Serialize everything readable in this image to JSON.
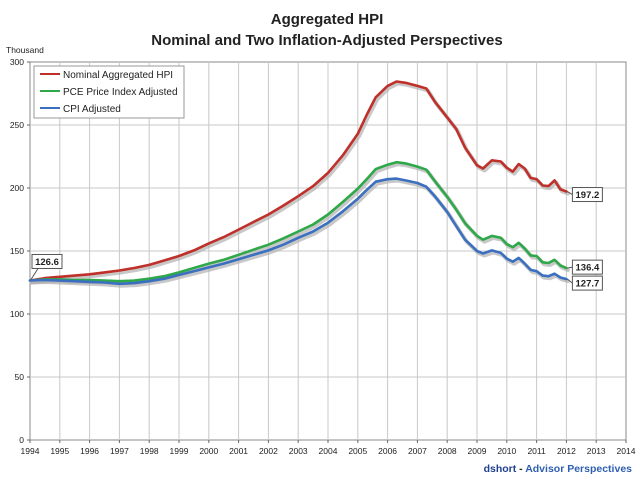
{
  "chart_data": {
    "type": "line",
    "title": "Aggregated HPI",
    "subtitle": "Nominal and Two Inflation-Adjusted Perspectives",
    "y_unit": "Thousand",
    "xlim": [
      1994,
      2014
    ],
    "ylim": [
      0,
      300
    ],
    "x_ticks": [
      "1994",
      "1995",
      "1996",
      "1997",
      "1998",
      "1999",
      "2000",
      "2001",
      "2002",
      "2003",
      "2004",
      "2005",
      "2006",
      "2007",
      "2008",
      "2009",
      "2010",
      "2011",
      "2012",
      "2013",
      "2014"
    ],
    "y_ticks": [
      "0",
      "50",
      "100",
      "150",
      "200",
      "250",
      "300"
    ],
    "grid": true,
    "legend_position": "top-left",
    "credit": {
      "name": "dshort",
      "separator": " - ",
      "org": "Advisor Perspectives",
      "name_color": "#1f3f8f",
      "org_color": "#2e5fb0"
    },
    "callouts": [
      {
        "label": "126.6",
        "x": 1994.0,
        "y": 126.6,
        "anchor": "start"
      },
      {
        "label": "197.2",
        "x": 2012.0,
        "y": 197.2,
        "anchor": "end"
      },
      {
        "label": "136.4",
        "x": 2012.0,
        "y": 136.4,
        "anchor": "end"
      },
      {
        "label": "127.7",
        "x": 2012.0,
        "y": 127.7,
        "anchor": "end"
      }
    ],
    "series": [
      {
        "name": "Nominal Aggregated HPI",
        "color": "#c0302a",
        "x": [
          1994.0,
          1994.5,
          1995.0,
          1995.5,
          1996.0,
          1996.5,
          1997.0,
          1997.5,
          1998.0,
          1998.5,
          1999.0,
          1999.5,
          2000.0,
          2000.5,
          2001.0,
          2001.5,
          2002.0,
          2002.5,
          2003.0,
          2003.5,
          2004.0,
          2004.5,
          2005.0,
          2005.3,
          2005.6,
          2006.0,
          2006.3,
          2006.6,
          2007.0,
          2007.3,
          2007.6,
          2008.0,
          2008.3,
          2008.6,
          2009.0,
          2009.2,
          2009.5,
          2009.8,
          2010.0,
          2010.2,
          2010.4,
          2010.6,
          2010.8,
          2011.0,
          2011.2,
          2011.4,
          2011.6,
          2011.8,
          2012.0
        ],
        "y": [
          126.6,
          128.5,
          129.5,
          130.5,
          131.5,
          133.0,
          134.5,
          136.5,
          139.0,
          142.5,
          146.0,
          150.5,
          156.0,
          161.0,
          167.0,
          173.0,
          179.0,
          186.0,
          193.5,
          201.5,
          212.0,
          226.0,
          243.0,
          258.0,
          272.0,
          281.0,
          284.5,
          283.5,
          281.0,
          279.0,
          268.0,
          256.0,
          247.0,
          232.0,
          218.0,
          215.5,
          222.0,
          221.0,
          216.0,
          213.0,
          219.0,
          215.5,
          208.0,
          207.0,
          202.0,
          201.5,
          206.0,
          199.0,
          197.2
        ]
      },
      {
        "name": "PCE Price Index Adjusted",
        "color": "#2fa84a",
        "x": [
          1994.0,
          1994.5,
          1995.0,
          1995.5,
          1996.0,
          1996.5,
          1997.0,
          1997.5,
          1998.0,
          1998.5,
          1999.0,
          1999.5,
          2000.0,
          2000.5,
          2001.0,
          2001.5,
          2002.0,
          2002.5,
          2003.0,
          2003.5,
          2004.0,
          2004.5,
          2005.0,
          2005.3,
          2005.6,
          2006.0,
          2006.3,
          2006.6,
          2007.0,
          2007.3,
          2007.6,
          2008.0,
          2008.3,
          2008.6,
          2009.0,
          2009.2,
          2009.5,
          2009.8,
          2010.0,
          2010.2,
          2010.4,
          2010.6,
          2010.8,
          2011.0,
          2011.2,
          2011.4,
          2011.6,
          2011.8,
          2012.0
        ],
        "y": [
          126.6,
          127.5,
          127.5,
          127.0,
          127.0,
          126.5,
          126.0,
          126.5,
          128.0,
          130.0,
          133.0,
          136.5,
          140.0,
          143.0,
          147.0,
          151.0,
          155.0,
          160.0,
          165.5,
          171.0,
          179.0,
          189.0,
          199.5,
          207.0,
          215.0,
          218.5,
          220.5,
          219.5,
          217.0,
          214.5,
          205.0,
          193.0,
          183.0,
          172.0,
          162.0,
          159.0,
          162.0,
          160.5,
          155.5,
          153.0,
          156.5,
          152.0,
          146.5,
          146.0,
          141.0,
          140.5,
          143.0,
          138.5,
          136.4
        ]
      },
      {
        "name": "CPI Adjusted",
        "color": "#3b6fc0",
        "x": [
          1994.0,
          1994.5,
          1995.0,
          1995.5,
          1996.0,
          1996.5,
          1997.0,
          1997.5,
          1998.0,
          1998.5,
          1999.0,
          1999.5,
          2000.0,
          2000.5,
          2001.0,
          2001.5,
          2002.0,
          2002.5,
          2003.0,
          2003.5,
          2004.0,
          2004.5,
          2005.0,
          2005.3,
          2005.6,
          2006.0,
          2006.3,
          2006.6,
          2007.0,
          2007.3,
          2007.6,
          2008.0,
          2008.3,
          2008.6,
          2009.0,
          2009.2,
          2009.5,
          2009.8,
          2010.0,
          2010.2,
          2010.4,
          2010.6,
          2010.8,
          2011.0,
          2011.2,
          2011.4,
          2011.6,
          2011.8,
          2012.0
        ],
        "y": [
          126.6,
          127.0,
          126.5,
          126.0,
          125.5,
          125.0,
          124.0,
          124.5,
          126.0,
          128.0,
          131.0,
          134.0,
          137.0,
          140.0,
          143.5,
          147.0,
          150.5,
          155.0,
          160.5,
          165.5,
          172.5,
          181.5,
          191.5,
          198.5,
          205.0,
          207.0,
          207.5,
          206.0,
          204.0,
          201.0,
          193.0,
          181.0,
          170.0,
          159.0,
          150.0,
          148.0,
          150.5,
          148.5,
          144.0,
          141.5,
          144.5,
          140.0,
          135.0,
          134.0,
          130.5,
          130.0,
          132.0,
          129.0,
          127.7
        ]
      }
    ]
  }
}
